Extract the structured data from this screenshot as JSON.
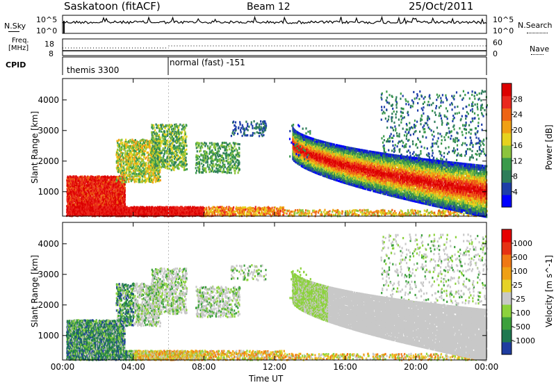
{
  "header": {
    "station": "Saskatoon (fitACF)",
    "beam": "Beam 12",
    "date": "25/Oct/2011"
  },
  "top_panels": {
    "nsky_label": "N.Sky",
    "nsky_top": "10^5",
    "nsky_bottom": "10^0",
    "nsearch_label": "N.Search",
    "nsearch_top": "10^5",
    "nsearch_bottom": "10^0",
    "freq_label_1": "Freq.",
    "freq_label_2": "[MHz]",
    "freq_top": "18",
    "freq_bottom": "8",
    "nave_label": "Nave",
    "nave_top": "60",
    "nave_bottom": "0",
    "cpid_label": "CPID",
    "cpid_modes": [
      "themis 3300",
      "normal (fast) -151"
    ]
  },
  "chart_data": [
    {
      "type": "heatmap",
      "name": "power",
      "ylabel": "Slant Range [km]",
      "xlabel": "",
      "xlim_hours": [
        0,
        24
      ],
      "ylim": [
        200,
        4700
      ],
      "yticks": [
        1000,
        2000,
        3000,
        4000
      ],
      "colorbar_label": "Power [dB]",
      "colorbar_ticks": [
        "28",
        "24",
        "20",
        "16",
        "12",
        "8",
        "4"
      ],
      "colorscale": [
        "#0000ff",
        "#1d3ea8",
        "#2e7d5a",
        "#3a9a4a",
        "#8cc43c",
        "#e6d21e",
        "#f0a014",
        "#ee6414",
        "#ea281e",
        "#dc0000"
      ]
    },
    {
      "type": "heatmap",
      "name": "velocity",
      "ylabel": "Slant Range [km]",
      "xlabel": "Time UT",
      "xlim_hours": [
        0,
        24
      ],
      "ylim": [
        200,
        4700
      ],
      "yticks": [
        1000,
        2000,
        3000,
        4000
      ],
      "xticks": [
        "00:00",
        "04:00",
        "08:00",
        "12:00",
        "16:00",
        "20:00",
        "00:00"
      ],
      "colorbar_label": "Velocity [m s^-1]",
      "colorbar_ticks": [
        "1000",
        "500",
        "100",
        "25",
        "-25",
        "-100",
        "-500",
        "-1000"
      ],
      "colorscale": [
        "#1e3ca0",
        "#1e7850",
        "#3ca03c",
        "#8cd23c",
        "#c8c8c8",
        "#e6d228",
        "#f0a014",
        "#f07814",
        "#e63214",
        "#e60000"
      ]
    }
  ],
  "xaxis": {
    "title": "Time UT",
    "ticks": [
      "00:00",
      "04:00",
      "08:00",
      "12:00",
      "16:00",
      "20:00",
      "00:00"
    ]
  },
  "yticks": [
    "1000",
    "2000",
    "3000",
    "4000"
  ]
}
